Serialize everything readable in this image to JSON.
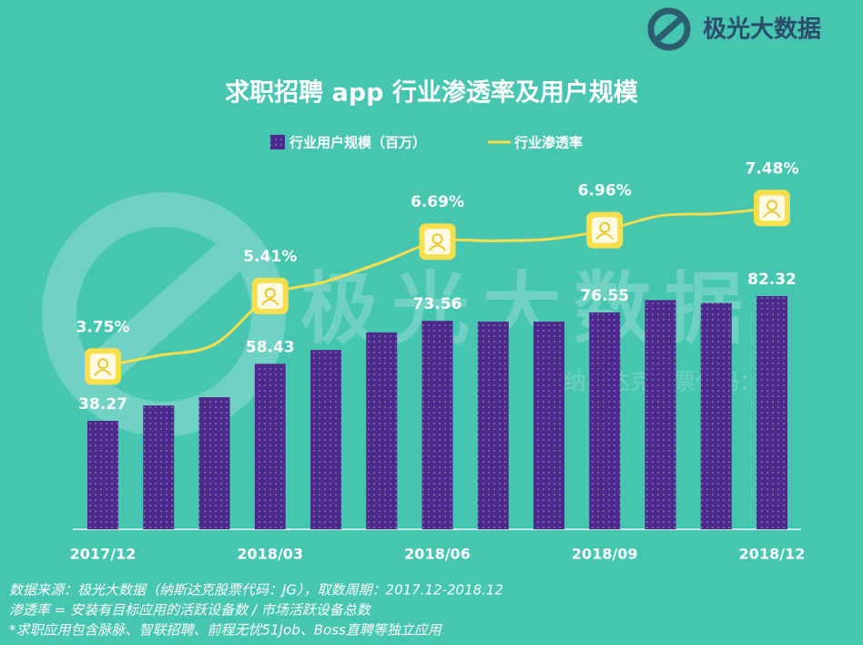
{
  "logo_text": "极光大数据",
  "watermark": {
    "title": "极光大数据",
    "subtitle": "纳斯达克股票代码：JG"
  },
  "footnotes": [
    "数据来源：极光大数据（纳斯达克股票代码：JG），取数周期：2017.12-2018.12",
    "渗透率 = 安装有目标应用的活跃设备数 / 市场活跃设备总数",
    "*求职应用包含脉脉、智联招聘、前程无忧51Job、Boss直聘等独立应用"
  ],
  "chart_data": {
    "type": "combo",
    "title": "求职招聘 app 行业渗透率及用户规模",
    "categories": [
      "2017/12",
      null,
      null,
      "2018/03",
      null,
      null,
      "2018/06",
      null,
      null,
      "2018/09",
      null,
      null,
      "2018/12"
    ],
    "series": [
      {
        "name": "行业用户规模（百万）",
        "type": "bar",
        "color": "#4b2a8c",
        "values": [
          38.27,
          43.7,
          46.6,
          58.43,
          63.3,
          69.5,
          73.56,
          73.3,
          73.3,
          76.55,
          80.9,
          79.9,
          82.32
        ],
        "value_labels": [
          "38.27",
          null,
          null,
          "58.43",
          null,
          null,
          "73.56",
          null,
          null,
          "76.55",
          null,
          null,
          "82.32"
        ]
      },
      {
        "name": "行业渗透率",
        "type": "line",
        "color": "#f7df4d",
        "values": [
          3.75,
          4.01,
          4.27,
          5.41,
          5.75,
          6.2,
          6.69,
          6.71,
          6.75,
          6.96,
          7.3,
          7.35,
          7.48
        ],
        "value_labels": [
          "3.75%",
          null,
          null,
          "5.41%",
          null,
          null,
          "6.69%",
          null,
          null,
          "6.96%",
          null,
          null,
          "7.48%"
        ]
      }
    ]
  }
}
